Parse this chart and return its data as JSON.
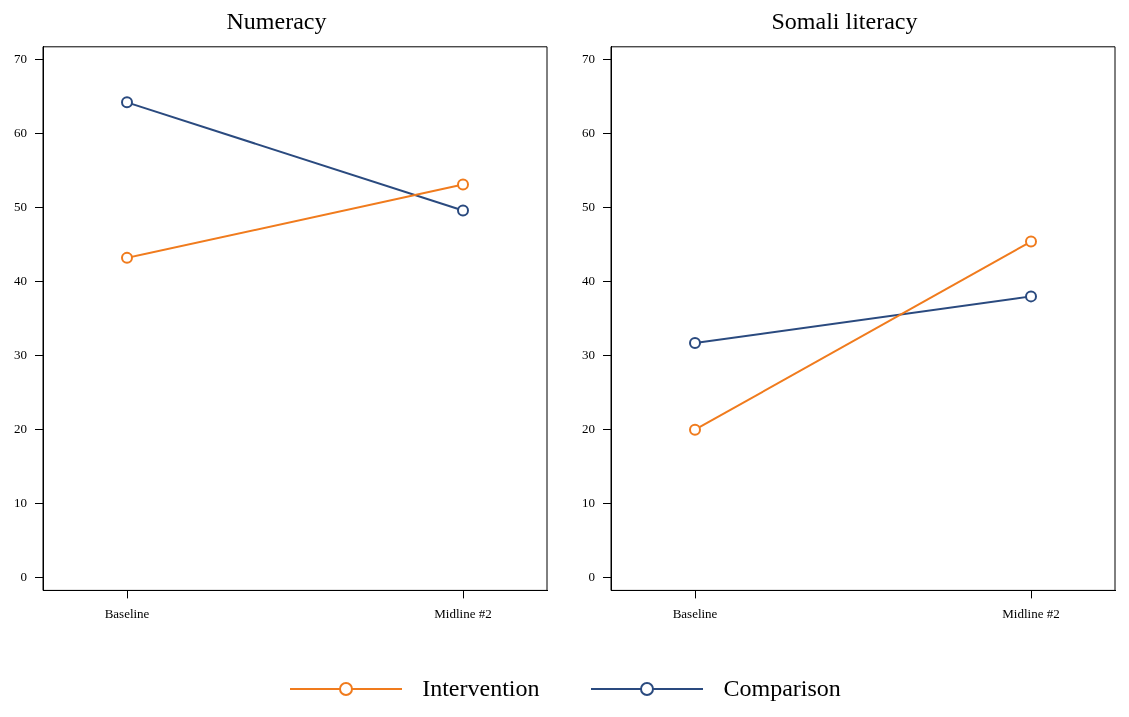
{
  "chart_data": [
    {
      "type": "line",
      "title": "Numeracy",
      "categories": [
        "Baseline",
        "Midline #2"
      ],
      "ylim": [
        -1.7,
        71.7
      ],
      "yticks": [
        0,
        10,
        20,
        30,
        40,
        50,
        60,
        70
      ],
      "grid": false,
      "marker": "circle",
      "legend": "bottom",
      "series": [
        {
          "name": "Intervention",
          "color": "#f07b1d",
          "values": [
            43.2,
            53.1
          ]
        },
        {
          "name": "Comparison",
          "color": "#2a4a7f",
          "values": [
            64.2,
            49.6
          ]
        }
      ]
    },
    {
      "type": "line",
      "title": "Somali literacy",
      "categories": [
        "Baseline",
        "Midline #2"
      ],
      "ylim": [
        -1.7,
        71.7
      ],
      "yticks": [
        0,
        10,
        20,
        30,
        40,
        50,
        60,
        70
      ],
      "grid": false,
      "marker": "circle",
      "series": [
        {
          "color": "#f07b1d",
          "values": [
            20.0,
            45.4
          ]
        },
        {
          "color": "#2a4a7f",
          "values": [
            31.7,
            38.0
          ]
        }
      ]
    }
  ]
}
